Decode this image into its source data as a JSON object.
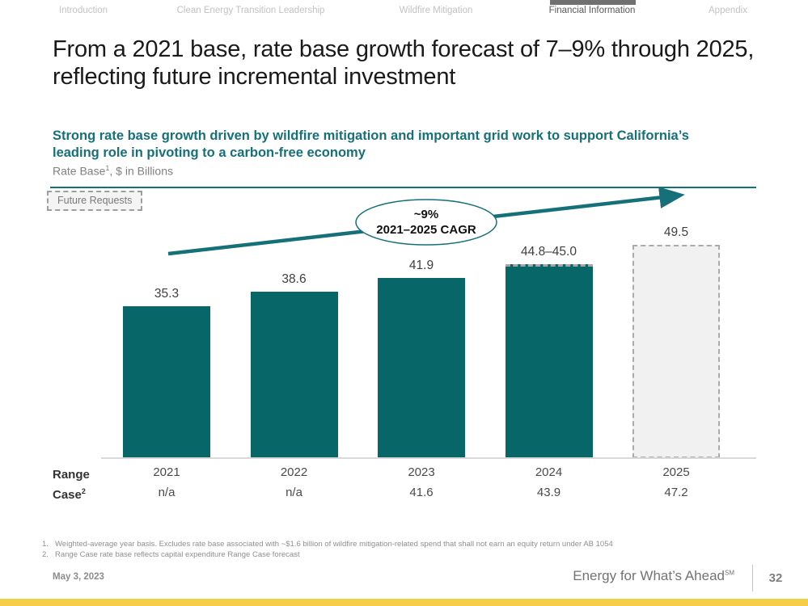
{
  "tabs": {
    "items": [
      {
        "label": "Introduction",
        "active": false
      },
      {
        "label": "Clean Energy Transition Leadership",
        "active": false
      },
      {
        "label": "Wildfire Mitigation",
        "active": false
      },
      {
        "label": "Financial Information",
        "active": true
      },
      {
        "label": "Appendix",
        "active": false
      }
    ]
  },
  "title": "From a 2021 base, rate base growth forecast of 7–9% through 2025, reflecting future incremental investment",
  "headline": "Strong rate base growth driven by wildfire mitigation and important grid work to support California’s leading role in pivoting to a carbon-free economy",
  "chart_header": {
    "label": "Rate Base",
    "footnote_ref": "1",
    "suffix": ", $ in Billions"
  },
  "legend": {
    "future_requests": "Future Requests"
  },
  "chart_data": {
    "type": "bar",
    "title": "Rate Base, $ in Billions",
    "categories": [
      "2021",
      "2022",
      "2023",
      "2024",
      "2025"
    ],
    "values": [
      35.3,
      38.6,
      41.9,
      45.0,
      49.5
    ],
    "bar_labels": [
      "35.3",
      "38.6",
      "41.9",
      "44.8–45.0",
      "49.5"
    ],
    "bar_styles": [
      "solid",
      "solid",
      "solid",
      "range-top",
      "future"
    ],
    "ylim": [
      0,
      50
    ],
    "grid": false,
    "legend_position": "top-left",
    "legend_entries": [
      "Future Requests"
    ],
    "annotation": {
      "line1": "~9%",
      "line2": "2021–2025 CAGR"
    },
    "range_case_row": {
      "label_line1": "Range",
      "label_line2": "Case",
      "footnote_ref": "2",
      "values": [
        "n/a",
        "n/a",
        "41.6",
        "43.9",
        "47.2"
      ]
    }
  },
  "footnotes": [
    {
      "num": "1.",
      "text": "Weighted-average year basis. Excludes rate base associated with ~$1.6 billion of wildfire mitigation-related spend that shall not earn an equity return under AB 1054"
    },
    {
      "num": "2.",
      "text": "Range Case rate base reflects capital expenditure Range Case forecast"
    }
  ],
  "footer": {
    "date": "May 3, 2023",
    "tagline": "Energy for What’s Ahead",
    "tagline_mark": "SM",
    "page": "32"
  },
  "colors": {
    "teal": "#16707A",
    "bar_teal": "#076667",
    "accent_yellow": "#F5CE47",
    "future_fill": "#F1F1F1",
    "future_border": "#ABABAB"
  }
}
